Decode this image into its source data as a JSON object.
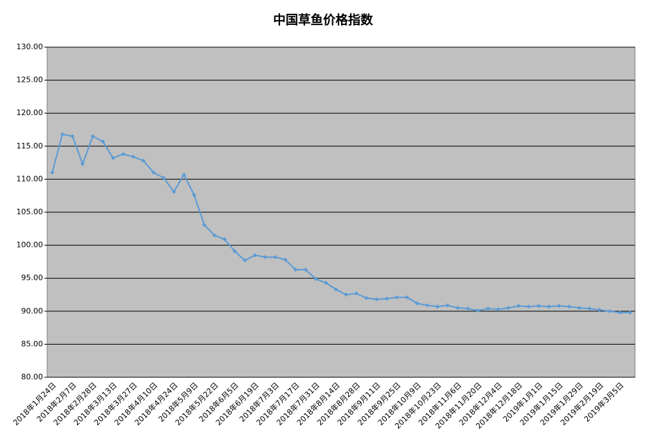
{
  "chart_data": {
    "type": "line",
    "title": "中国草鱼价格指数",
    "categories": [
      "2018年1月24日",
      null,
      "2018年2月7日",
      null,
      "2018年2月28日",
      null,
      "2018年3月13日",
      null,
      "2018年3月27日",
      null,
      "2018年4月10日",
      null,
      "2018年4月24日",
      null,
      "2018年5月9日",
      null,
      "2018年5月22日",
      null,
      "2018年6月5日",
      null,
      "2018年6月19日",
      null,
      "2018年7月3日",
      null,
      "2018年7月17日",
      null,
      "2018年7月31日",
      null,
      "2018年8月14日",
      null,
      "2018年8月28日",
      null,
      "2018年9月11日",
      null,
      "2018年9月25日",
      null,
      "2018年10月9日",
      null,
      "2018年10月23日",
      null,
      "2018年11月6日",
      null,
      "2018年11月20日",
      null,
      "2018年12月4日",
      null,
      "2018年12月18日",
      null,
      "2019年1月1日",
      null,
      "2019年1月15日",
      null,
      "2019年1月29日",
      null,
      "2019年2月19日",
      null,
      "2019年3月5日",
      null
    ],
    "series": [
      {
        "name": "中国草鱼价格指数",
        "color": "#5b9bd5",
        "values": [
          111.0,
          116.8,
          116.5,
          112.3,
          116.5,
          115.7,
          113.2,
          113.8,
          113.4,
          112.8,
          111.0,
          110.2,
          108.1,
          110.7,
          107.6,
          103.1,
          101.5,
          100.9,
          99.1,
          97.7,
          98.5,
          98.2,
          98.2,
          97.8,
          96.3,
          96.3,
          94.9,
          94.3,
          93.3,
          92.5,
          92.7,
          92.0,
          91.8,
          91.9,
          92.1,
          92.1,
          91.2,
          90.9,
          90.7,
          90.9,
          90.5,
          90.4,
          90.1,
          90.4,
          90.3,
          90.5,
          90.8,
          90.7,
          90.8,
          90.7,
          90.8,
          90.7,
          90.5,
          90.4,
          90.2,
          90.0,
          89.8,
          89.8
        ]
      }
    ],
    "ylim": [
      80,
      130
    ],
    "yticks": [
      {
        "value": 80,
        "label": "80.00"
      },
      {
        "value": 85,
        "label": "85.00"
      },
      {
        "value": 90,
        "label": "90.00"
      },
      {
        "value": 95,
        "label": "95.00"
      },
      {
        "value": 100,
        "label": "100.00"
      },
      {
        "value": 105,
        "label": "105.00"
      },
      {
        "value": 110,
        "label": "110.00"
      },
      {
        "value": 115,
        "label": "115.00"
      },
      {
        "value": 120,
        "label": "120.00"
      },
      {
        "value": 125,
        "label": "125.00"
      },
      {
        "value": 130,
        "label": "130.00"
      }
    ],
    "grid": true,
    "plot_background": "#c0c0c0"
  }
}
